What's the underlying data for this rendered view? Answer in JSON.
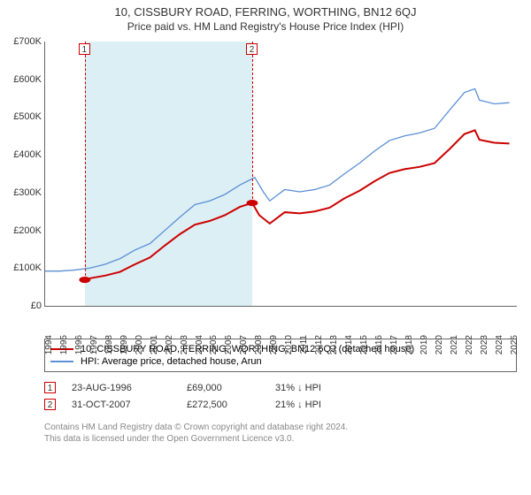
{
  "title": "10, CISSBURY ROAD, FERRING, WORTHING, BN12 6QJ",
  "subtitle": "Price paid vs. HM Land Registry's House Price Index (HPI)",
  "chart": {
    "type": "line",
    "x_years": [
      1994,
      1995,
      1996,
      1997,
      1998,
      1999,
      2000,
      2001,
      2002,
      2003,
      2004,
      2005,
      2006,
      2007,
      2008,
      2009,
      2010,
      2011,
      2012,
      2013,
      2014,
      2015,
      2016,
      2017,
      2018,
      2019,
      2020,
      2021,
      2022,
      2023,
      2024,
      2025
    ],
    "xlim": [
      1994,
      2025.5
    ],
    "ylim": [
      0,
      700000
    ],
    "ytick_step": 100000,
    "y_tick_labels": [
      "£0",
      "£100K",
      "£200K",
      "£300K",
      "£400K",
      "£500K",
      "£600K",
      "£700K"
    ],
    "highlight_band": {
      "start": 1996.65,
      "end": 2007.83,
      "color": "#d6ecf3"
    },
    "series": [
      {
        "id": "property",
        "label": "10, CISSBURY ROAD, FERRING, WORTHING, BN12 6QJ (detached house)",
        "color": "#cc0000",
        "width": 2,
        "points": [
          [
            1996.65,
            69000
          ],
          [
            1997,
            73000
          ],
          [
            1998,
            80000
          ],
          [
            1999,
            90000
          ],
          [
            2000,
            110000
          ],
          [
            2001,
            128000
          ],
          [
            2002,
            160000
          ],
          [
            2003,
            190000
          ],
          [
            2004,
            215000
          ],
          [
            2005,
            225000
          ],
          [
            2006,
            240000
          ],
          [
            2007,
            262000
          ],
          [
            2007.83,
            272500
          ],
          [
            2008.3,
            240000
          ],
          [
            2009,
            218000
          ],
          [
            2010,
            248000
          ],
          [
            2011,
            245000
          ],
          [
            2012,
            250000
          ],
          [
            2013,
            260000
          ],
          [
            2014,
            285000
          ],
          [
            2015,
            305000
          ],
          [
            2016,
            330000
          ],
          [
            2017,
            352000
          ],
          [
            2018,
            362000
          ],
          [
            2019,
            368000
          ],
          [
            2020,
            378000
          ],
          [
            2021,
            415000
          ],
          [
            2022,
            455000
          ],
          [
            2022.7,
            465000
          ],
          [
            2023,
            440000
          ],
          [
            2024,
            432000
          ],
          [
            2025,
            430000
          ]
        ]
      },
      {
        "id": "hpi",
        "label": "HPI: Average price, detached house, Arun",
        "color": "#5b8fd6",
        "width": 1.3,
        "points": [
          [
            1994,
            92000
          ],
          [
            1995,
            92000
          ],
          [
            1996,
            95000
          ],
          [
            1997,
            100000
          ],
          [
            1998,
            110000
          ],
          [
            1999,
            125000
          ],
          [
            2000,
            148000
          ],
          [
            2001,
            165000
          ],
          [
            2002,
            200000
          ],
          [
            2003,
            235000
          ],
          [
            2004,
            268000
          ],
          [
            2005,
            278000
          ],
          [
            2006,
            295000
          ],
          [
            2007,
            320000
          ],
          [
            2008,
            340000
          ],
          [
            2008.6,
            300000
          ],
          [
            2009,
            278000
          ],
          [
            2010,
            308000
          ],
          [
            2011,
            302000
          ],
          [
            2012,
            308000
          ],
          [
            2013,
            320000
          ],
          [
            2014,
            350000
          ],
          [
            2015,
            378000
          ],
          [
            2016,
            410000
          ],
          [
            2017,
            438000
          ],
          [
            2018,
            450000
          ],
          [
            2019,
            458000
          ],
          [
            2020,
            470000
          ],
          [
            2021,
            518000
          ],
          [
            2022,
            565000
          ],
          [
            2022.7,
            575000
          ],
          [
            2023,
            545000
          ],
          [
            2024,
            535000
          ],
          [
            2025,
            538000
          ]
        ]
      }
    ],
    "markers": [
      {
        "num": "1",
        "year": 1996.65,
        "value": 69000
      },
      {
        "num": "2",
        "year": 2007.83,
        "value": 272500
      }
    ],
    "background_color": "#ffffff",
    "axis_color": "#666666",
    "label_color": "#333333",
    "label_fontsize": 11
  },
  "legend": {
    "items": [
      {
        "color": "#cc0000",
        "label": "10, CISSBURY ROAD, FERRING, WORTHING, BN12 6QJ (detached house)"
      },
      {
        "color": "#5b8fd6",
        "label": "HPI: Average price, detached house, Arun"
      }
    ]
  },
  "sales": [
    {
      "num": "1",
      "date": "23-AUG-1996",
      "price": "£69,000",
      "delta": "31% ↓ HPI"
    },
    {
      "num": "2",
      "date": "31-OCT-2007",
      "price": "£272,500",
      "delta": "21% ↓ HPI"
    }
  ],
  "footer": {
    "line1": "Contains HM Land Registry data © Crown copyright and database right 2024.",
    "line2": "This data is licensed under the Open Government Licence v3.0."
  }
}
